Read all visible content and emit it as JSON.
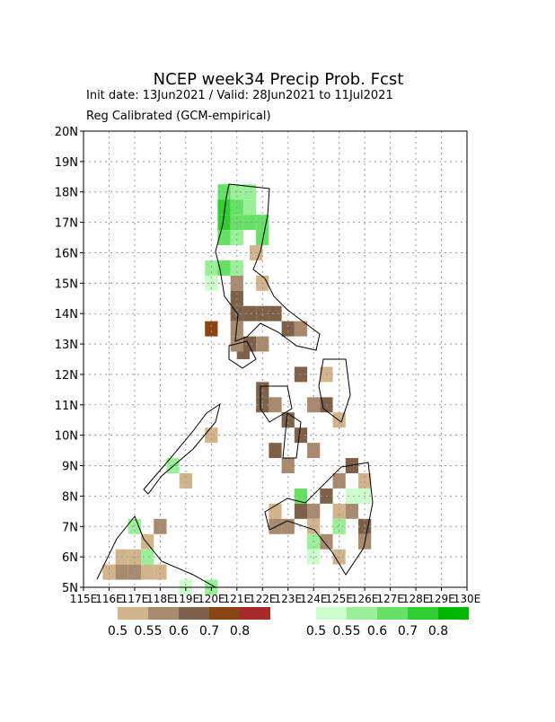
{
  "chart_data": {
    "type": "gridmap",
    "title": "NCEP week34 Precip Prob. Fcst",
    "subtitle": "Init date: 13Jun2021 / Valid: 28Jun2021 to 11Jul2021",
    "note": "Reg Calibrated (GCM-empirical)",
    "xlim": [
      115,
      130
    ],
    "ylim": [
      5,
      20
    ],
    "xticks": [
      {
        "value": 115,
        "label": "115E"
      },
      {
        "value": 116,
        "label": "116E"
      },
      {
        "value": 117,
        "label": "117E"
      },
      {
        "value": 118,
        "label": "118E"
      },
      {
        "value": 119,
        "label": "119E"
      },
      {
        "value": 120,
        "label": "120E"
      },
      {
        "value": 121,
        "label": "121E"
      },
      {
        "value": 122,
        "label": "122E"
      },
      {
        "value": 123,
        "label": "123E"
      },
      {
        "value": 124,
        "label": "124E"
      },
      {
        "value": 125,
        "label": "125E"
      },
      {
        "value": 126,
        "label": "126E"
      },
      {
        "value": 127,
        "label": "127E"
      },
      {
        "value": 128,
        "label": "128E"
      },
      {
        "value": 129,
        "label": "129E"
      },
      {
        "value": 130,
        "label": "130E"
      }
    ],
    "yticks": [
      {
        "value": 5,
        "label": "5N"
      },
      {
        "value": 6,
        "label": "6N"
      },
      {
        "value": 7,
        "label": "7N"
      },
      {
        "value": 8,
        "label": "8N"
      },
      {
        "value": 9,
        "label": "9N"
      },
      {
        "value": 10,
        "label": "10N"
      },
      {
        "value": 11,
        "label": "11N"
      },
      {
        "value": 12,
        "label": "12N"
      },
      {
        "value": 13,
        "label": "13N"
      },
      {
        "value": 14,
        "label": "14N"
      },
      {
        "value": 15,
        "label": "15N"
      },
      {
        "value": 16,
        "label": "16N"
      },
      {
        "value": 17,
        "label": "17N"
      },
      {
        "value": 18,
        "label": "18N"
      },
      {
        "value": 19,
        "label": "19N"
      },
      {
        "value": 20,
        "label": "20N"
      }
    ],
    "grid": true,
    "cell_size": 0.5,
    "dry": {
      "levels": [
        0.5,
        0.55,
        0.6,
        0.7,
        0.8
      ],
      "colors": [
        "#d2b48c",
        "#a88a6e",
        "#7d6148",
        "#8b4513",
        "#a52a2a"
      ],
      "lon": [
        121.0,
        121.0,
        121.5,
        121.0,
        122.0,
        120.0,
        121.0,
        121.5,
        121.25,
        121.0,
        122.5,
        123.0,
        123.5,
        122.0,
        121.75,
        122.0,
        122.0,
        122.0,
        122.5,
        123.0,
        123.5,
        122.5,
        123.0,
        124.0,
        123.5,
        124.0,
        124.5,
        125.0,
        124.5,
        125.5,
        125.0,
        124.5,
        124.0,
        123.5,
        123.0,
        122.5,
        122.5,
        124.0,
        125.0,
        125.5,
        126.0,
        126.0,
        125.0,
        124.5,
        125.0,
        126.0,
        120.0,
        119.0,
        118.0,
        117.5,
        117.0,
        116.5,
        116.0,
        117.5,
        118.0,
        116.5,
        117.0
      ],
      "lat": [
        15.0,
        14.5,
        14.0,
        14.0,
        14.0,
        13.5,
        13.5,
        13.0,
        12.75,
        13.0,
        14.0,
        13.5,
        13.5,
        15.0,
        16.0,
        13.0,
        11.5,
        11.0,
        11.0,
        10.5,
        10.0,
        9.5,
        9.0,
        9.5,
        12.0,
        11.0,
        11.0,
        10.5,
        12.0,
        9.0,
        8.5,
        8.0,
        7.5,
        7.5,
        7.0,
        7.5,
        7.0,
        7.0,
        7.5,
        7.5,
        7.0,
        6.5,
        6.0,
        6.5,
        7.0,
        8.5,
        10.0,
        8.5,
        7.0,
        6.5,
        6.0,
        5.5,
        5.5,
        5.5,
        5.5,
        6.0,
        5.5
      ],
      "values": [
        0.55,
        0.6,
        0.6,
        0.6,
        0.6,
        0.7,
        0.55,
        0.6,
        0.6,
        0.55,
        0.6,
        0.6,
        0.55,
        0.5,
        0.5,
        0.55,
        0.6,
        0.6,
        0.55,
        0.6,
        0.6,
        0.6,
        0.55,
        0.55,
        0.6,
        0.55,
        0.6,
        0.5,
        0.5,
        0.6,
        0.55,
        0.6,
        0.55,
        0.6,
        0.55,
        0.5,
        0.55,
        0.5,
        0.5,
        0.55,
        0.6,
        0.55,
        0.5,
        0.55,
        0.5,
        0.5,
        0.5,
        0.5,
        0.55,
        0.5,
        0.5,
        0.55,
        0.5,
        0.5,
        0.5,
        0.5,
        0.55
      ]
    },
    "wet": {
      "levels": [
        0.5,
        0.55,
        0.6,
        0.7,
        0.8
      ],
      "colors": [
        "#ccffcc",
        "#99f099",
        "#66e066",
        "#33cc33",
        "#00b800"
      ],
      "lon": [
        120.5,
        121.0,
        121.5,
        120.5,
        121.0,
        121.5,
        120.5,
        121.0,
        121.5,
        122.0,
        120.5,
        121.0,
        122.0,
        120.0,
        120.5,
        120.0,
        121.0,
        123.5,
        125.5,
        126.0,
        124.0,
        124.0,
        125.0,
        117.0,
        117.5,
        118.5,
        119.0,
        120.0
      ],
      "lat": [
        18.0,
        18.0,
        18.0,
        17.5,
        17.5,
        17.0,
        17.0,
        17.0,
        17.5,
        17.0,
        16.5,
        16.5,
        16.5,
        15.5,
        15.5,
        15.0,
        15.5,
        8.0,
        8.0,
        8.0,
        6.5,
        6.0,
        7.0,
        7.0,
        6.0,
        9.0,
        5.0,
        5.0
      ],
      "values": [
        0.6,
        0.55,
        0.55,
        0.7,
        0.6,
        0.6,
        0.7,
        0.6,
        0.55,
        0.6,
        0.6,
        0.55,
        0.6,
        0.55,
        0.6,
        0.5,
        0.55,
        0.6,
        0.5,
        0.5,
        0.55,
        0.5,
        0.55,
        0.55,
        0.55,
        0.55,
        0.5,
        0.55
      ]
    }
  }
}
